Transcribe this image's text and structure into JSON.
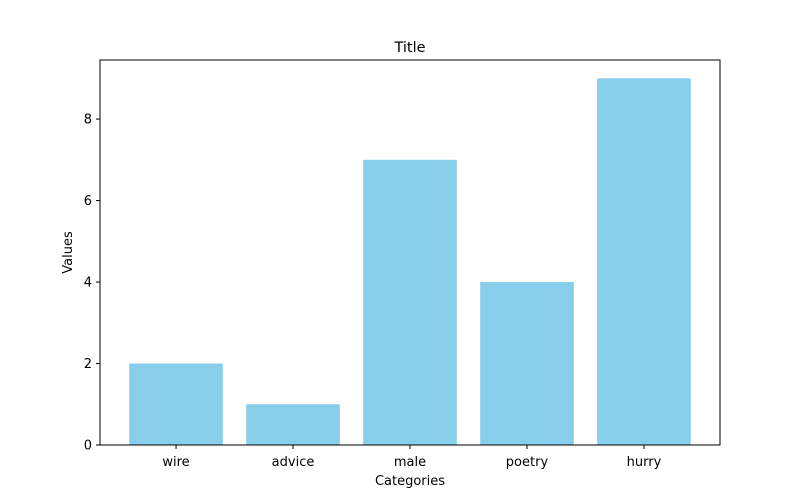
{
  "chart_data": {
    "type": "bar",
    "title": "Title",
    "xlabel": "Categories",
    "ylabel": "Values",
    "categories": [
      "wire",
      "advice",
      "male",
      "poetry",
      "hurry"
    ],
    "values": [
      2,
      1,
      7,
      4,
      9
    ],
    "ylim": [
      0,
      9.45
    ],
    "yticks": [
      0,
      2,
      4,
      6,
      8
    ],
    "bar_color": "#87ceeb",
    "grid": false,
    "legend": "none"
  }
}
